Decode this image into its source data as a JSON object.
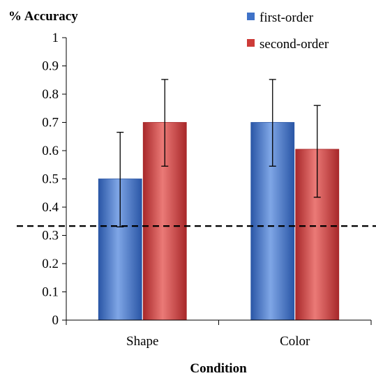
{
  "chart_data": {
    "type": "bar",
    "title": "",
    "ylabel": "% Accuracy",
    "xlabel": "Condition",
    "categories": [
      "Shape",
      "Color"
    ],
    "series": [
      {
        "name": "first-order",
        "color": "#3f72c8",
        "color_light": "#7fa6e6",
        "color_dark": "#2a56a6",
        "values": [
          0.5,
          0.7
        ],
        "error_low": [
          0.33,
          0.545
        ],
        "error_high": [
          0.665,
          0.852
        ]
      },
      {
        "name": "second-order",
        "color": "#cd3b38",
        "color_light": "#eb7a77",
        "color_dark": "#a8282a",
        "values": [
          0.7,
          0.605
        ],
        "error_low": [
          0.545,
          0.435
        ],
        "error_high": [
          0.852,
          0.76
        ]
      }
    ],
    "reference_line": {
      "value": 0.333,
      "style": "dashed"
    },
    "ylim": [
      0,
      1
    ],
    "yticks": [
      "0",
      "0.1",
      "0.2",
      "0.3",
      "0.4",
      "0.5",
      "0.6",
      "0.7",
      "0.8",
      "0.9",
      "1"
    ],
    "grid": false,
    "legend": "top-right"
  }
}
